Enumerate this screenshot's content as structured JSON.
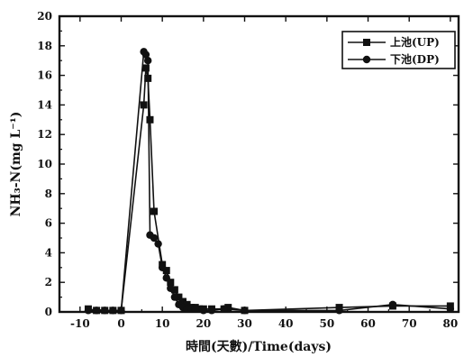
{
  "chart_data": {
    "type": "line",
    "xlabel": "時間(天數)/Time(days)",
    "ylabel": "NH₃-N(mg L⁻¹)",
    "xlim": [
      -15,
      82
    ],
    "ylim": [
      0,
      20
    ],
    "xticks": [
      -10,
      0,
      10,
      20,
      30,
      40,
      50,
      60,
      70,
      80
    ],
    "yticks": [
      0,
      2,
      4,
      6,
      8,
      10,
      12,
      14,
      16,
      18,
      20
    ],
    "grid": false,
    "legend_position": "top-right",
    "series": [
      {
        "name": "上池(UP)",
        "marker": "square",
        "x": [
          -8,
          -6,
          -4,
          -2,
          0,
          5.5,
          6,
          6.5,
          7,
          8,
          10,
          11,
          12,
          13,
          14,
          15,
          16,
          17,
          18,
          19,
          20,
          22,
          25,
          26,
          30,
          53,
          66,
          80
        ],
        "y": [
          0.2,
          0.1,
          0.1,
          0.1,
          0.1,
          14.0,
          16.5,
          15.8,
          13.0,
          6.8,
          3.2,
          2.8,
          2.0,
          1.5,
          1.0,
          0.7,
          0.5,
          0.3,
          0.3,
          0.2,
          0.2,
          0.2,
          0.2,
          0.3,
          0.1,
          0.3,
          0.4,
          0.4
        ]
      },
      {
        "name": "下池(DP)",
        "marker": "circle",
        "x": [
          -8,
          -6,
          -4,
          -2,
          0,
          5.5,
          6,
          6.5,
          7,
          8,
          9,
          10,
          11,
          12,
          13,
          14,
          15,
          16,
          17,
          18,
          20,
          22,
          25,
          30,
          53,
          66,
          80
        ],
        "y": [
          0.1,
          0.1,
          0.1,
          0.1,
          0.1,
          17.6,
          17.4,
          17.0,
          5.2,
          5.0,
          4.6,
          3.0,
          2.3,
          1.6,
          1.0,
          0.5,
          0.3,
          0.2,
          0.2,
          0.2,
          0.1,
          0.1,
          0.2,
          0.1,
          0.1,
          0.5,
          0.2
        ]
      }
    ]
  }
}
